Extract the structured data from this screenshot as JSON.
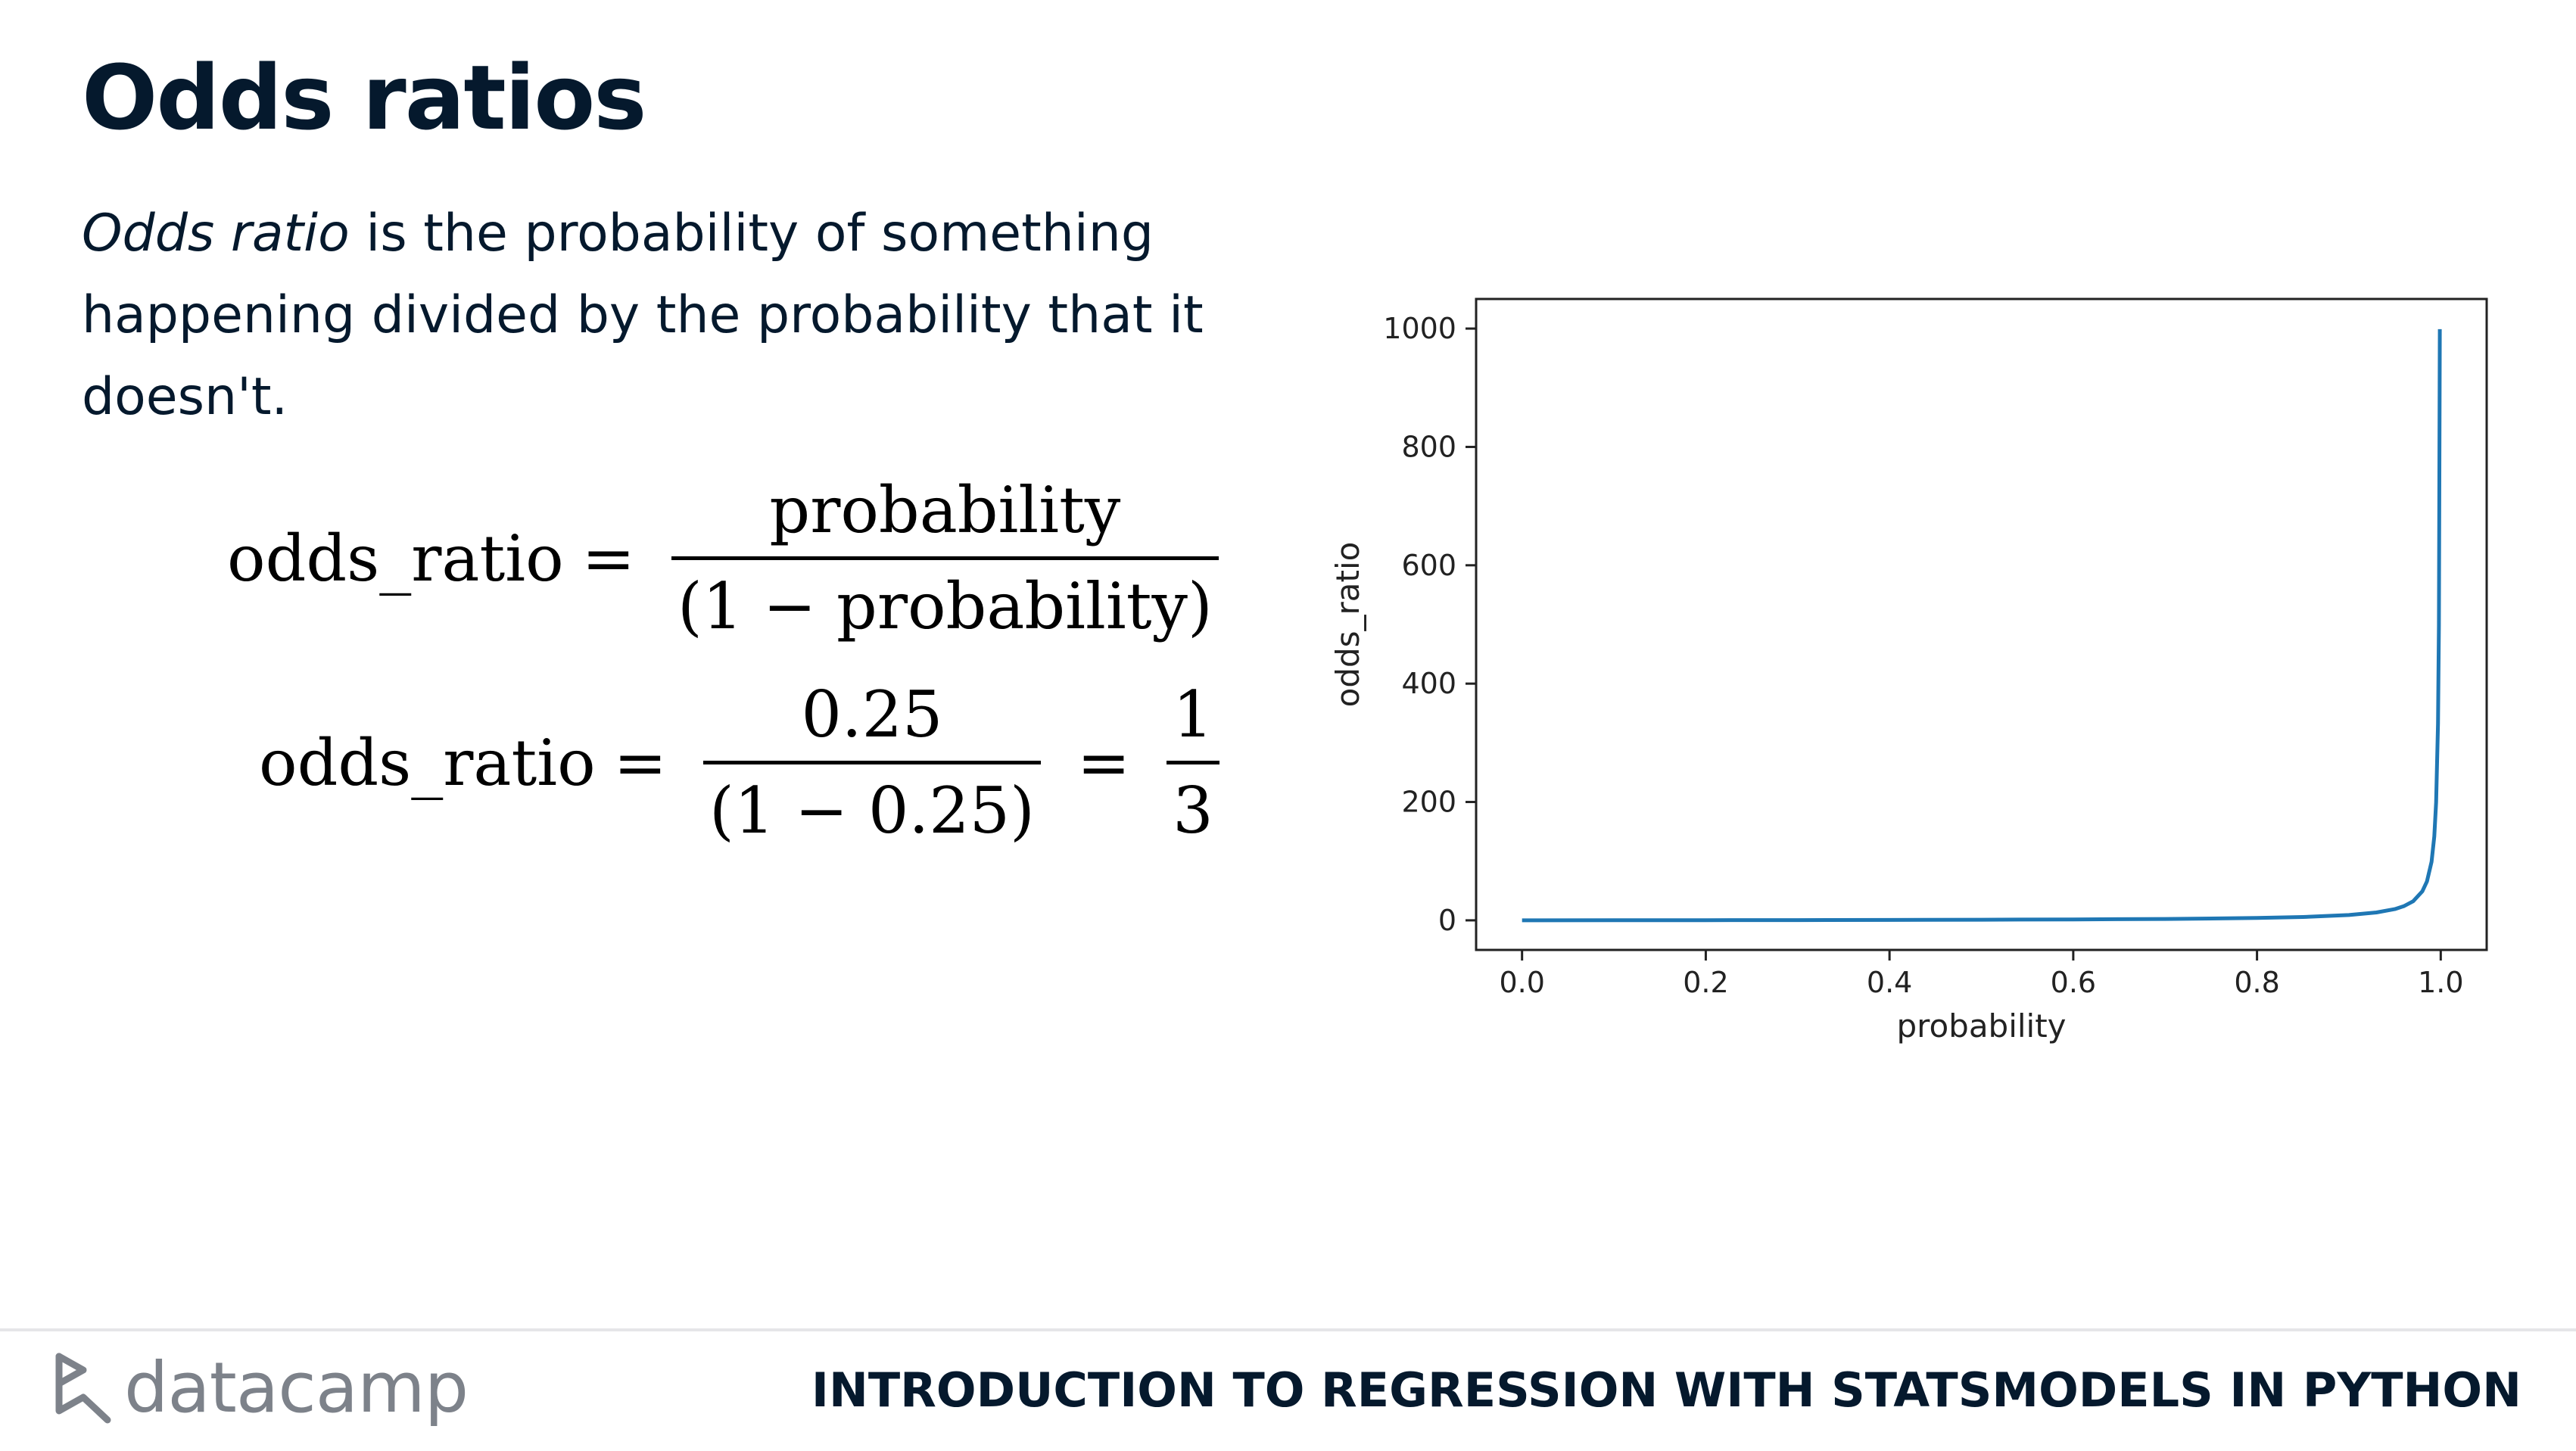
{
  "slide": {
    "title": "Odds ratios",
    "definition_term": "Odds ratio",
    "definition_rest": " is the probability of something happening divided by the probability that it doesn't."
  },
  "formulas": {
    "eq1": {
      "lhs": "odds_ratio",
      "equals": "=",
      "numerator": "probability",
      "denominator": "(1 − probability)"
    },
    "eq2": {
      "lhs": "odds_ratio",
      "equals": "=",
      "numerator": "0.25",
      "denominator": "(1 − 0.25)",
      "equals2": "=",
      "result_numerator": "1",
      "result_denominator": "3"
    }
  },
  "chart_data": {
    "type": "line",
    "xlabel": "probability",
    "ylabel": "odds_ratio",
    "xlim": [
      -0.05,
      1.05
    ],
    "ylim": [
      -50,
      1050
    ],
    "xticks": [
      "0.0",
      "0.2",
      "0.4",
      "0.6",
      "0.8",
      "1.0"
    ],
    "yticks": [
      "0",
      "200",
      "400",
      "600",
      "800",
      "1000"
    ],
    "grid": false,
    "series": [
      {
        "color": "#1f77b4",
        "function": "p / (1 - p)",
        "x": [
          0.0,
          0.1,
          0.2,
          0.3,
          0.4,
          0.5,
          0.6,
          0.7,
          0.8,
          0.85,
          0.9,
          0.93,
          0.95,
          0.96,
          0.97,
          0.98,
          0.985,
          0.99,
          0.993,
          0.995,
          0.997,
          0.998,
          0.999
        ],
        "y": [
          0,
          0.11,
          0.25,
          0.43,
          0.67,
          1,
          1.5,
          2.33,
          4,
          5.67,
          9,
          13.3,
          19,
          24,
          32.3,
          49,
          65.7,
          99,
          141.9,
          199,
          332.3,
          499,
          999
        ]
      }
    ]
  },
  "footer": {
    "brand": "datacamp",
    "course": "INTRODUCTION TO REGRESSION WITH STATSMODELS IN PYTHON"
  },
  "colors": {
    "text": "#05192d",
    "line": "#1f77b4",
    "brand_gray": "#7d828a"
  }
}
